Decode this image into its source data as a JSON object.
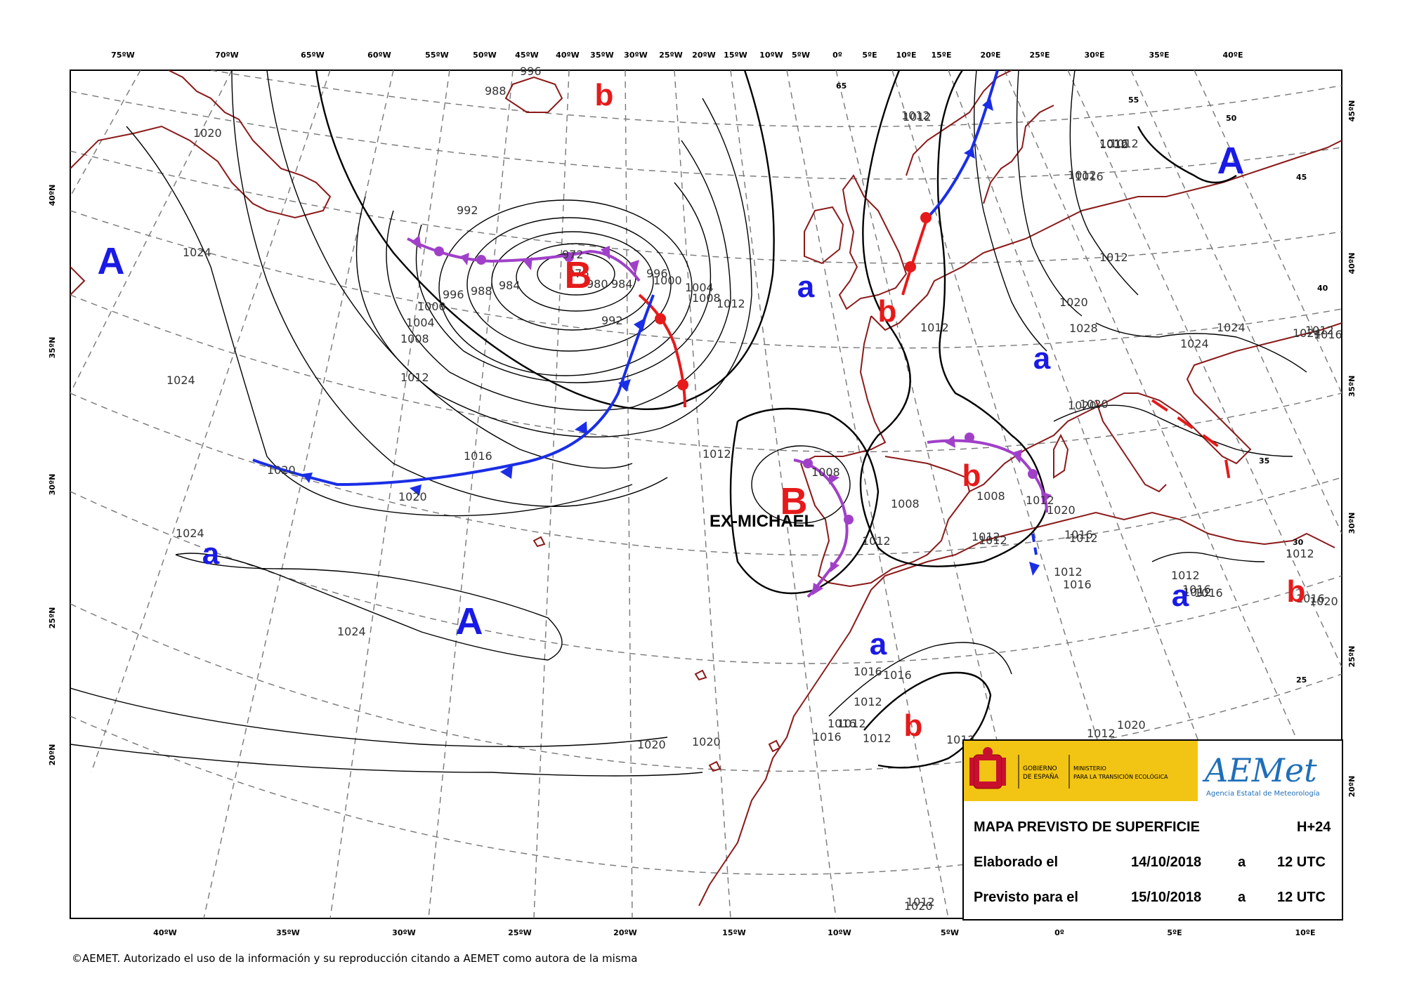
{
  "map": {
    "title": "MAPA PREVISTO DE SUPERFICIE",
    "forecast_range": "H+24",
    "elaborated_label": "Elaborado el",
    "elaborated_date": "14/10/2018",
    "elaborated_sep": "a",
    "elaborated_time": "12 UTC",
    "valid_label": "Previsto para el",
    "valid_date": "15/10/2018",
    "valid_sep": "a",
    "valid_time": "12 UTC"
  },
  "agency": {
    "gov_text": [
      "GOBIERNO",
      "DE ESPAÑA"
    ],
    "ministry_text": [
      "MINISTERIO",
      "PARA LA TRANSICIÓN ECOLÓGICA"
    ],
    "logo_text": "AEMet",
    "logo_subtitle": "Agencia Estatal de Meteorología"
  },
  "copyright": "©AEMET. Autorizado el uso de la información y su reproducción citando a AEMET como autora de la misma",
  "top_ticks": [
    "75ºW",
    "70ºW",
    "65ºW",
    "60ºW",
    "55ºW",
    "50ºW",
    "45ºW",
    "40ºW",
    "35ºW",
    "30ºW",
    "25ºW",
    "20ºW",
    "15ºW",
    "10ºW",
    "5ºW",
    "0º",
    "5ºE",
    "10ºE",
    "15ºE",
    "20ºE",
    "25ºE",
    "30ºE",
    "35ºE",
    "40ºE"
  ],
  "bottom_ticks": [
    "40ºW",
    "35ºW",
    "30ºW",
    "25ºW",
    "20ºW",
    "15ºW",
    "10ºW",
    "5ºW",
    "0º",
    "5ºE",
    "10ºE"
  ],
  "left_ticks": [
    "40ºN",
    "35ºN",
    "30ºN",
    "25ºN",
    "20ºN"
  ],
  "right_ticks": [
    "45ºN",
    "40ºN",
    "35ºN",
    "30ºN",
    "25ºN",
    "20ºN"
  ],
  "inner_lat_labels": [
    "65",
    "55",
    "50",
    "45",
    "40",
    "35",
    "30",
    "25"
  ],
  "named_features": [
    "EX-MICHAEL"
  ],
  "pressure_centers": [
    {
      "label": "A",
      "type": "high"
    },
    {
      "label": "A",
      "type": "high"
    },
    {
      "label": "A",
      "type": "high"
    },
    {
      "label": "a",
      "type": "high"
    },
    {
      "label": "a",
      "type": "high"
    },
    {
      "label": "a",
      "type": "high"
    },
    {
      "label": "a",
      "type": "high"
    },
    {
      "label": "a",
      "type": "high"
    },
    {
      "label": "B",
      "type": "low"
    },
    {
      "label": "B",
      "type": "low"
    },
    {
      "label": "b",
      "type": "low"
    },
    {
      "label": "b",
      "type": "low"
    },
    {
      "label": "b",
      "type": "low"
    },
    {
      "label": "b",
      "type": "low"
    },
    {
      "label": "b",
      "type": "low"
    }
  ],
  "isobar_labels": [
    "1020",
    "1024",
    "1024",
    "1024",
    "1024",
    "1020",
    "1020",
    "992",
    "996",
    "1000",
    "1004",
    "1008",
    "1012",
    "1016",
    "1020",
    "1020",
    "996",
    "988",
    "984",
    "988",
    "976",
    "972",
    "980",
    "984",
    "992",
    "996",
    "1000",
    "1004",
    "1008",
    "1012",
    "1012",
    "1012",
    "1008",
    "1012",
    "1008",
    "1012",
    "1012",
    "1012",
    "1016",
    "1016",
    "1016",
    "1016",
    "1012",
    "1012",
    "1012",
    "1012",
    "1012",
    "1020",
    "1020",
    "1012",
    "1012",
    "1016",
    "1016",
    "1012",
    "1020",
    "1028",
    "1024",
    "1024",
    "1024",
    "1016",
    "1020",
    "1020",
    "1020",
    "1016",
    "1016",
    "1012",
    "1012",
    "1016",
    "1016",
    "1008",
    "1012",
    "1012",
    "1012",
    "1020",
    "1016",
    "1012",
    "1012",
    "1012",
    "1012",
    "1012",
    "1008"
  ],
  "colors": {
    "coast": "#8b1a1a",
    "high": "#1a1ae6",
    "low": "#e61a1a",
    "cold_front": "#1a2ee6",
    "warm_front": "#e61a1a",
    "occluded_front": "#a040c8",
    "gridline": "#777777",
    "isobar": "#000000",
    "gov_yellow": "#f2c414"
  },
  "fronts": [
    {
      "type": "occluded"
    },
    {
      "type": "cold"
    },
    {
      "type": "warm"
    },
    {
      "type": "occluded"
    },
    {
      "type": "occluded"
    },
    {
      "type": "cold"
    },
    {
      "type": "warm"
    },
    {
      "type": "cold"
    },
    {
      "type": "trough"
    }
  ]
}
